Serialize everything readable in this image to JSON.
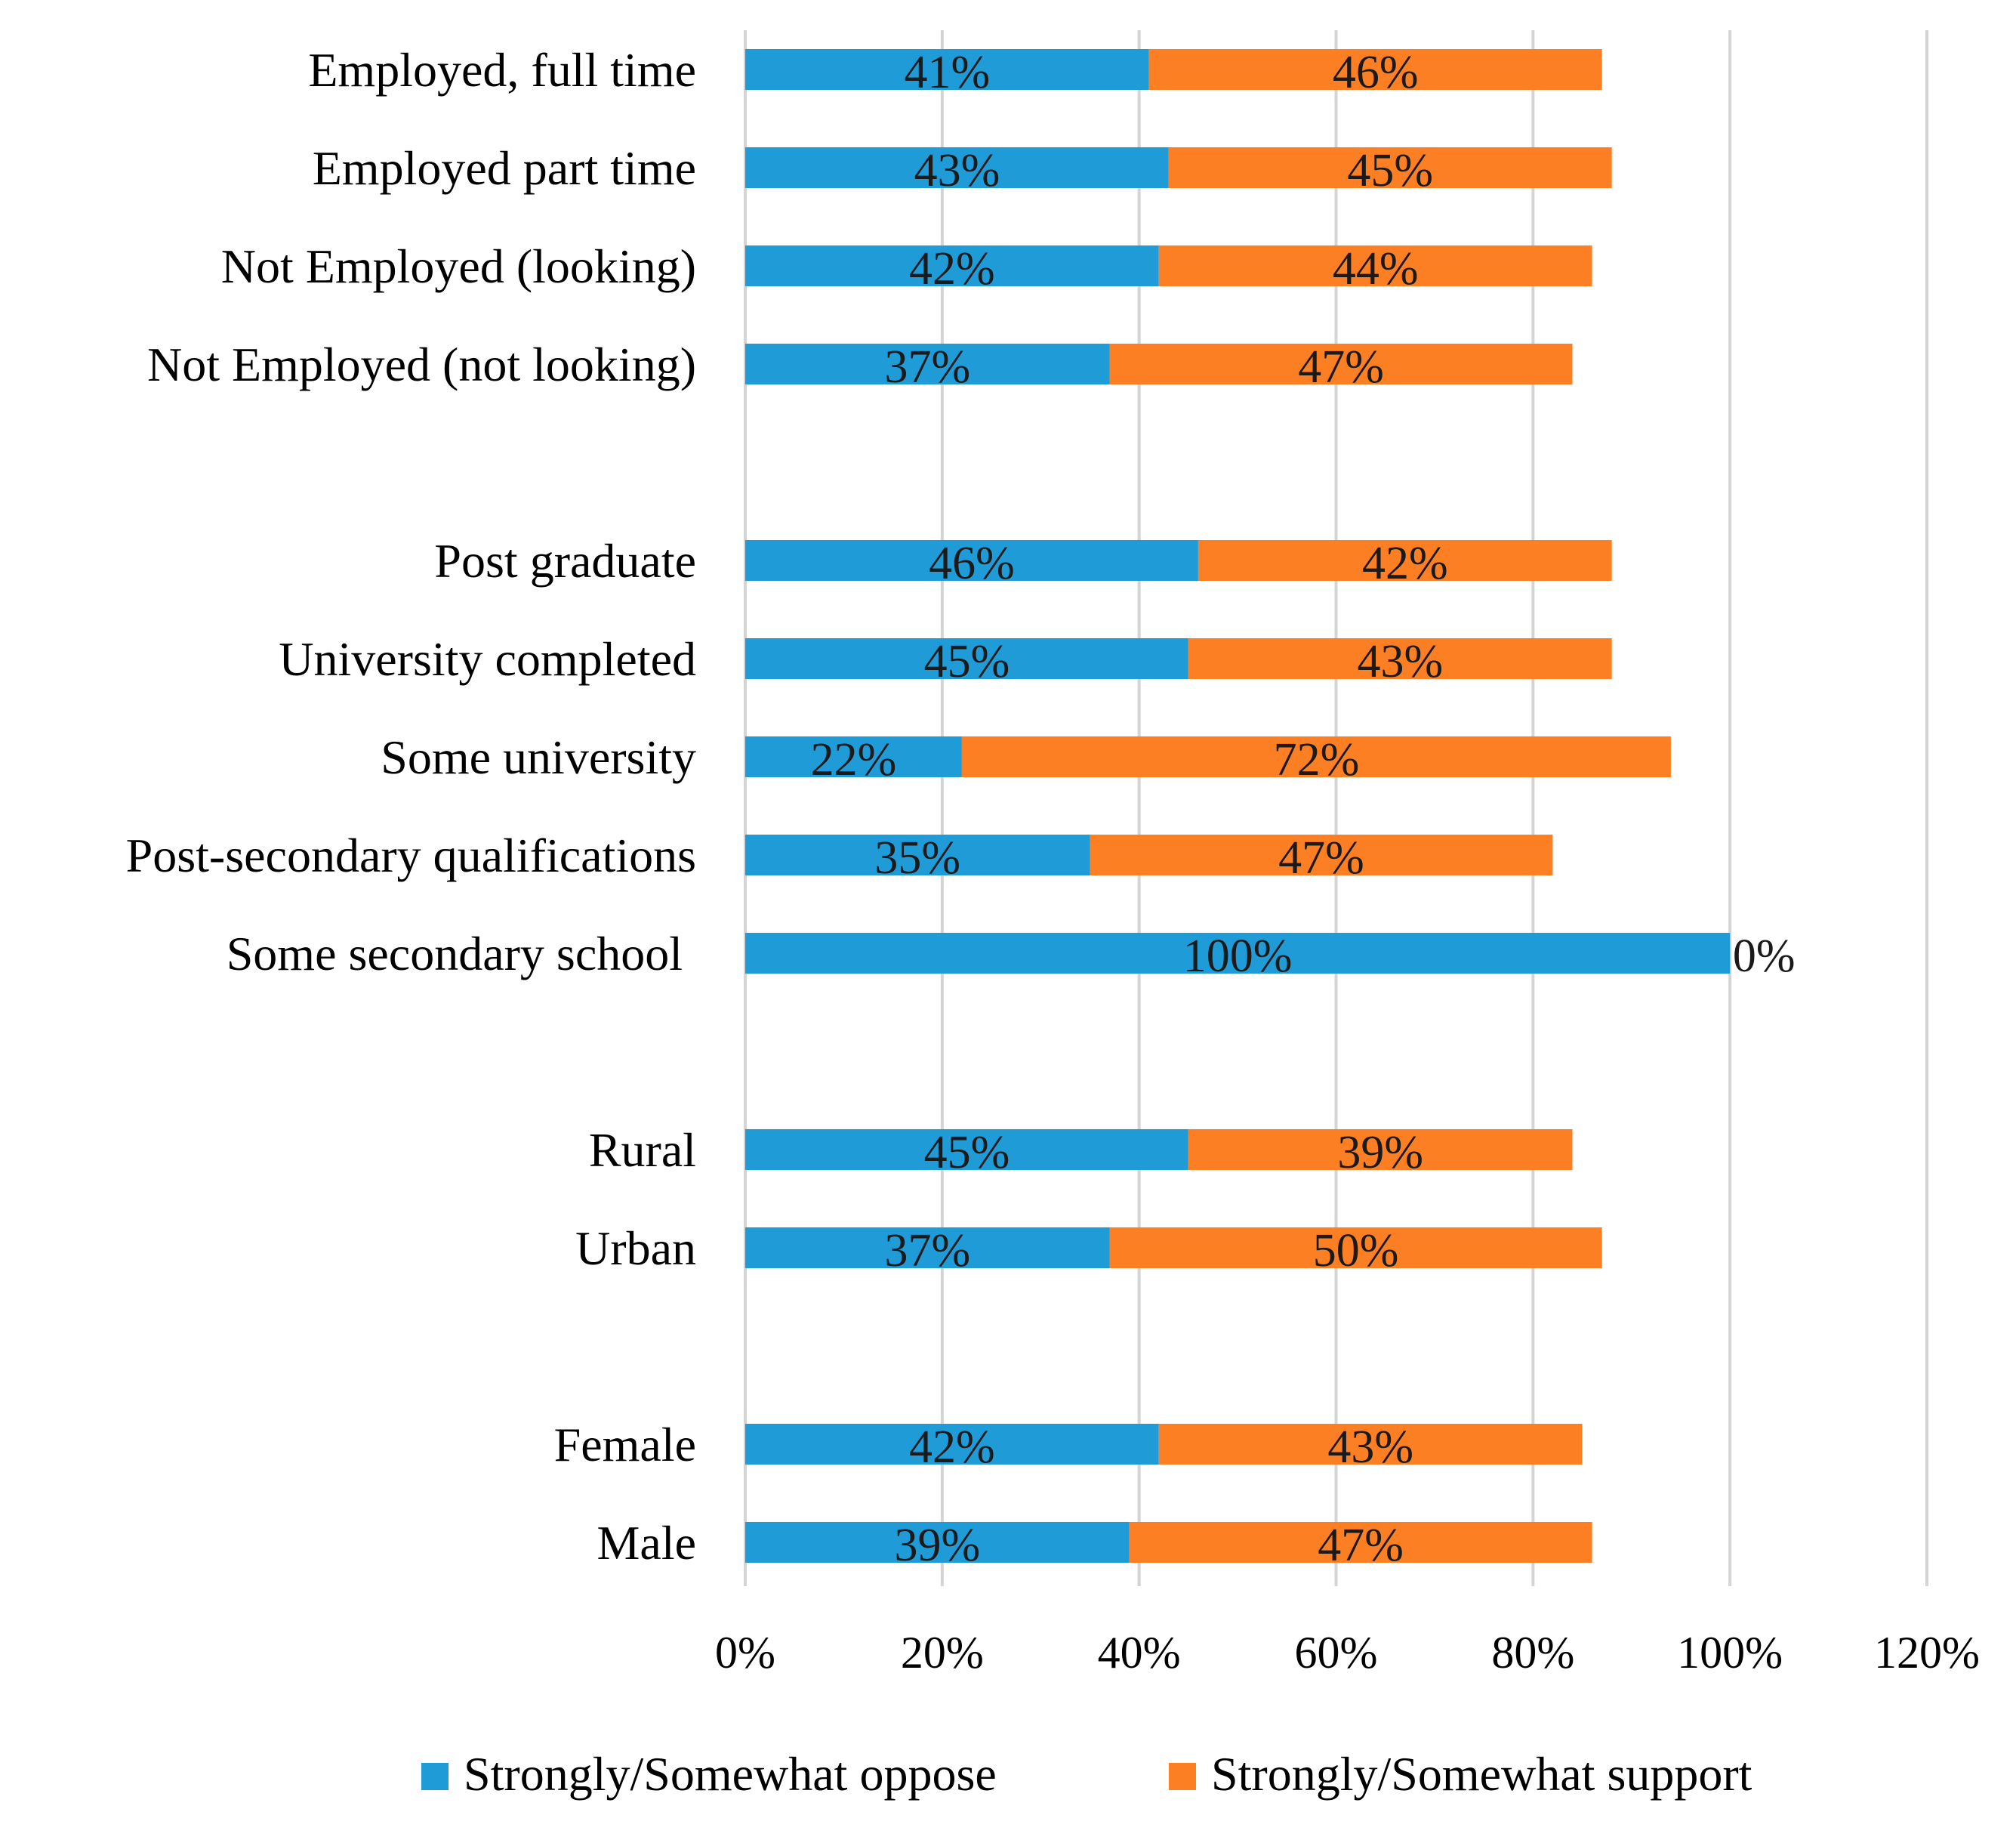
{
  "chart_data": {
    "type": "bar",
    "orientation": "horizontal",
    "stacked": true,
    "title": "",
    "xlabel": "",
    "ylabel": "",
    "xlim": [
      0,
      120
    ],
    "x_ticks": [
      "0%",
      "20%",
      "40%",
      "60%",
      "80%",
      "100%",
      "120%"
    ],
    "grid": "vertical",
    "legend_position": "bottom",
    "categories": [
      "Employed, full time",
      "Employed part time",
      "Not Employed (looking)",
      "Not Employed (not looking)",
      "",
      "Post graduate",
      "University completed",
      "Some university",
      "Post-secondary qualifications",
      "Some secondary school",
      "",
      "Rural",
      "Urban",
      "",
      "Female",
      "Male"
    ],
    "series": [
      {
        "name": "Strongly/Somewhat oppose",
        "color": "#1f9bd7",
        "values": [
          41,
          43,
          42,
          37,
          null,
          46,
          45,
          22,
          35,
          100,
          null,
          45,
          37,
          null,
          42,
          39
        ],
        "labels": [
          "41%",
          "43%",
          "42%",
          "37%",
          "",
          "46%",
          "45%",
          "22%",
          "35%",
          "100%",
          "",
          "45%",
          "37%",
          "",
          "42%",
          "39%"
        ]
      },
      {
        "name": "Strongly/Somewhat support",
        "color": "#fd7f23",
        "values": [
          46,
          45,
          44,
          47,
          null,
          42,
          43,
          72,
          47,
          0,
          null,
          39,
          50,
          null,
          43,
          47
        ],
        "labels": [
          "46%",
          "45%",
          "44%",
          "47%",
          "",
          "42%",
          "43%",
          "72%",
          "47%",
          "0%",
          "",
          "39%",
          "50%",
          "",
          "43%",
          "47%"
        ]
      }
    ]
  }
}
